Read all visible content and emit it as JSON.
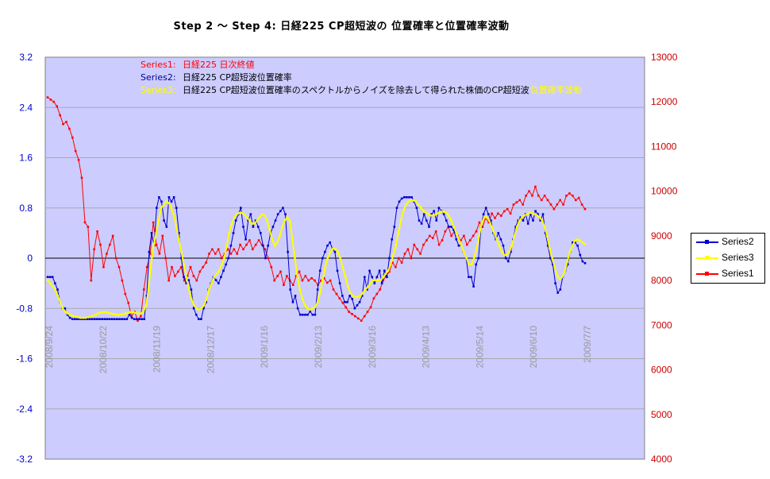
{
  "title": "Step 2 ～ Step 4:  日経225  CP超短波の 位置確率と位置確率波動",
  "annotations": [
    {
      "prefix": "Series1:",
      "text": "日経225 日次終値",
      "color": "#ff0000"
    },
    {
      "prefix": "Series2:",
      "text": "日経225 CP超短波位置確率",
      "color": "#000099"
    },
    {
      "prefix": "Series3:",
      "text": "日経225 CP超短波位置確率のスペクトルからノイズを除去して得られた株価のCP超短波",
      "suffix": "位置確率波動",
      "color": "#ffff00"
    }
  ],
  "colors": {
    "plot_bg": "#ccccff",
    "series1": "#ff0000",
    "series2": "#0000cc",
    "series3": "#ffff00",
    "zero_line": "#000000",
    "grid": "#aaaaaa"
  },
  "chart_data": {
    "type": "line",
    "y_left": {
      "min": -3.2,
      "max": 3.2,
      "ticks": [
        "3.2",
        "2.4",
        "1.6",
        "0.8",
        "0",
        "-0.8",
        "-1.6",
        "-2.4",
        "-3.2"
      ]
    },
    "y_right": {
      "min": 4000,
      "max": 13000,
      "ticks": [
        "13000",
        "12000",
        "11000",
        "10000",
        "9000",
        "8000",
        "7000",
        "6000",
        "5000",
        "4000"
      ]
    },
    "x_tick_labels": [
      "2008/9/24",
      "2008/10/22",
      "2008/11/19",
      "2008/12/17",
      "2009/1/16",
      "2009/2/13",
      "2009/3/16",
      "2009/4/13",
      "2009/5/14",
      "2009/6/10",
      "2009/7/7"
    ],
    "grid": "horizontal",
    "legend_placement": "right",
    "series": [
      {
        "name": "Series2",
        "axis": "left",
        "values": [
          -0.3,
          -0.3,
          -0.3,
          -0.4,
          -0.5,
          -0.7,
          -0.8,
          -0.8,
          -0.9,
          -0.95,
          -0.97,
          -0.97,
          -0.97,
          -0.97,
          -0.97,
          -0.97,
          -0.97,
          -0.97,
          -0.97,
          -0.97,
          -0.97,
          -0.97,
          -0.97,
          -0.97,
          -0.97,
          -0.97,
          -0.97,
          -0.97,
          -0.97,
          -0.97,
          -0.97,
          -0.97,
          -0.97,
          -0.9,
          -0.95,
          -0.97,
          -0.97,
          -0.97,
          -0.97,
          -0.97,
          -0.6,
          0.1,
          0.4,
          0.2,
          0.8,
          0.97,
          0.9,
          0.6,
          0.5,
          0.97,
          0.9,
          0.97,
          0.8,
          0.4,
          0.0,
          -0.3,
          -0.4,
          -0.35,
          -0.5,
          -0.8,
          -0.9,
          -0.97,
          -0.97,
          -0.8,
          -0.7,
          -0.5,
          -0.4,
          -0.3,
          -0.35,
          -0.4,
          -0.3,
          -0.2,
          -0.1,
          0.0,
          0.2,
          0.4,
          0.6,
          0.7,
          0.8,
          0.5,
          0.3,
          0.6,
          0.7,
          0.5,
          0.6,
          0.5,
          0.4,
          0.2,
          0.0,
          0.2,
          0.4,
          0.5,
          0.6,
          0.7,
          0.75,
          0.8,
          0.7,
          0.1,
          -0.5,
          -0.7,
          -0.6,
          -0.8,
          -0.9,
          -0.9,
          -0.9,
          -0.9,
          -0.85,
          -0.9,
          -0.9,
          -0.5,
          -0.2,
          0.0,
          0.1,
          0.2,
          0.25,
          0.15,
          0.1,
          -0.2,
          -0.4,
          -0.6,
          -0.7,
          -0.7,
          -0.6,
          -0.65,
          -0.8,
          -0.75,
          -0.7,
          -0.6,
          -0.3,
          -0.5,
          -0.2,
          -0.3,
          -0.4,
          -0.3,
          -0.2,
          -0.4,
          -0.2,
          -0.3,
          0.0,
          0.3,
          0.5,
          0.8,
          0.9,
          0.95,
          0.97,
          0.97,
          0.97,
          0.97,
          0.9,
          0.8,
          0.6,
          0.55,
          0.7,
          0.6,
          0.5,
          0.7,
          0.75,
          0.6,
          0.8,
          0.75,
          0.7,
          0.6,
          0.5,
          0.5,
          0.45,
          0.3,
          0.2,
          0.2,
          0.1,
          0.0,
          -0.3,
          -0.3,
          -0.45,
          -0.1,
          0.0,
          0.5,
          0.7,
          0.8,
          0.7,
          0.6,
          0.4,
          0.3,
          0.4,
          0.3,
          0.2,
          0.0,
          -0.05,
          0.1,
          0.3,
          0.5,
          0.6,
          0.65,
          0.6,
          0.7,
          0.55,
          0.7,
          0.6,
          0.75,
          0.7,
          0.6,
          0.7,
          0.4,
          0.2,
          0.0,
          -0.1,
          -0.4,
          -0.55,
          -0.5,
          -0.3,
          -0.2,
          -0.1,
          0.1,
          0.25,
          0.25,
          0.2,
          0.05,
          -0.05,
          -0.08
        ]
      },
      {
        "name": "Series3",
        "axis": "left",
        "values": [
          -0.35,
          -0.4,
          -0.45,
          -0.5,
          -0.6,
          -0.7,
          -0.8,
          -0.85,
          -0.88,
          -0.9,
          -0.92,
          -0.93,
          -0.94,
          -0.95,
          -0.95,
          -0.95,
          -0.94,
          -0.93,
          -0.92,
          -0.9,
          -0.88,
          -0.87,
          -0.86,
          -0.86,
          -0.87,
          -0.88,
          -0.89,
          -0.9,
          -0.9,
          -0.9,
          -0.89,
          -0.88,
          -0.87,
          -0.86,
          -0.86,
          -0.87,
          -0.88,
          -0.88,
          -0.85,
          -0.75,
          -0.5,
          -0.1,
          0.2,
          0.4,
          0.6,
          0.8,
          0.85,
          0.9,
          0.88,
          0.8,
          0.7,
          0.5,
          0.3,
          0.1,
          -0.1,
          -0.3,
          -0.5,
          -0.65,
          -0.75,
          -0.8,
          -0.82,
          -0.8,
          -0.75,
          -0.65,
          -0.5,
          -0.4,
          -0.3,
          -0.25,
          -0.2,
          -0.1,
          0.0,
          0.2,
          0.4,
          0.55,
          0.65,
          0.7,
          0.72,
          0.72,
          0.7,
          0.65,
          0.6,
          0.55,
          0.55,
          0.6,
          0.65,
          0.7,
          0.68,
          0.6,
          0.45,
          0.3,
          0.2,
          0.25,
          0.35,
          0.5,
          0.6,
          0.65,
          0.6,
          0.3,
          0.0,
          -0.3,
          -0.5,
          -0.65,
          -0.75,
          -0.8,
          -0.82,
          -0.8,
          -0.78,
          -0.7,
          -0.55,
          -0.35,
          -0.15,
          0.0,
          0.1,
          0.15,
          0.15,
          0.1,
          0.0,
          -0.15,
          -0.3,
          -0.45,
          -0.55,
          -0.6,
          -0.62,
          -0.62,
          -0.6,
          -0.55,
          -0.5,
          -0.45,
          -0.4,
          -0.35,
          -0.35,
          -0.35,
          -0.35,
          -0.3,
          -0.25,
          -0.2,
          -0.1,
          0.05,
          0.2,
          0.4,
          0.6,
          0.75,
          0.85,
          0.9,
          0.92,
          0.92,
          0.9,
          0.85,
          0.8,
          0.75,
          0.72,
          0.7,
          0.68,
          0.68,
          0.7,
          0.72,
          0.74,
          0.74,
          0.72,
          0.68,
          0.6,
          0.5,
          0.4,
          0.3,
          0.2,
          0.1,
          0.0,
          -0.1,
          -0.1,
          0.0,
          0.15,
          0.35,
          0.55,
          0.65,
          0.65,
          0.6,
          0.5,
          0.4,
          0.3,
          0.2,
          0.1,
          0.05,
          0.05,
          0.1,
          0.2,
          0.35,
          0.5,
          0.6,
          0.65,
          0.68,
          0.7,
          0.72,
          0.72,
          0.7,
          0.68,
          0.65,
          0.6,
          0.5,
          0.35,
          0.15,
          0.0,
          -0.15,
          -0.28,
          -0.33,
          -0.3,
          -0.2,
          -0.05,
          0.1,
          0.2,
          0.28,
          0.3,
          0.28,
          0.25,
          0.22
        ]
      },
      {
        "name": "Series1",
        "axis": "right",
        "values": [
          12100,
          12050,
          12000,
          11900,
          11700,
          11500,
          11550,
          11400,
          11200,
          10900,
          10700,
          10300,
          9300,
          9200,
          8000,
          8700,
          9100,
          8800,
          8300,
          8600,
          8800,
          9000,
          8500,
          8300,
          8000,
          7700,
          7500,
          7200,
          7300,
          7100,
          7200,
          7800,
          8300,
          8600,
          9300,
          8800,
          8600,
          9000,
          8500,
          8000,
          8300,
          8100,
          8200,
          8300,
          8000,
          8100,
          8300,
          8100,
          8000,
          8200,
          8300,
          8400,
          8600,
          8700,
          8600,
          8700,
          8500,
          8600,
          8700,
          8600,
          8700,
          8600,
          8800,
          8700,
          8800,
          8900,
          8700,
          8800,
          8900,
          8800,
          8700,
          8500,
          8300,
          8000,
          8100,
          8200,
          7900,
          8100,
          8000,
          7900,
          8100,
          8200,
          8000,
          8100,
          8000,
          8050,
          8000,
          7900,
          8000,
          8050,
          7950,
          8000,
          7800,
          7700,
          7600,
          7500,
          7400,
          7300,
          7250,
          7200,
          7150,
          7100,
          7200,
          7300,
          7400,
          7600,
          7700,
          7800,
          8000,
          8100,
          8200,
          8400,
          8300,
          8500,
          8400,
          8600,
          8700,
          8500,
          8800,
          8700,
          8600,
          8800,
          8900,
          9000,
          8950,
          9100,
          8800,
          8900,
          9100,
          9200,
          9000,
          9100,
          9000,
          8900,
          9000,
          8800,
          8900,
          9000,
          9100,
          9300,
          9200,
          9400,
          9300,
          9500,
          9400,
          9500,
          9450,
          9550,
          9600,
          9500,
          9700,
          9750,
          9800,
          9700,
          9900,
          10000,
          9900,
          10100,
          9900,
          9800,
          9900,
          9800,
          9700,
          9600,
          9700,
          9800,
          9700,
          9900,
          9950,
          9900,
          9800,
          9850,
          9700,
          9600
        ]
      }
    ]
  }
}
